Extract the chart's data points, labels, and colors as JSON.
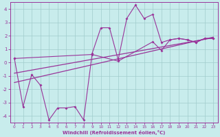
{
  "xlabel": "Windchill (Refroidissement éolien,°C)",
  "xlim": [
    -0.5,
    23.5
  ],
  "ylim": [
    -4.5,
    4.5
  ],
  "yticks": [
    -4,
    -3,
    -2,
    -1,
    0,
    1,
    2,
    3,
    4
  ],
  "xticks": [
    0,
    1,
    2,
    3,
    4,
    5,
    6,
    7,
    8,
    9,
    10,
    11,
    12,
    13,
    14,
    15,
    16,
    17,
    18,
    19,
    20,
    21,
    22,
    23
  ],
  "bg_color": "#c8ecec",
  "line_color": "#993399",
  "grid_color": "#a0cccc",
  "series1_x": [
    0,
    1,
    2,
    3,
    4,
    5,
    6,
    7,
    8,
    9,
    10,
    11,
    12,
    13,
    14,
    15,
    16,
    17,
    18,
    19,
    20,
    21,
    22,
    23
  ],
  "series1_y": [
    0.3,
    -3.3,
    -0.9,
    -1.7,
    -4.3,
    -3.4,
    -3.4,
    -3.3,
    -4.3,
    0.7,
    2.6,
    2.6,
    0.2,
    3.3,
    4.3,
    3.3,
    3.6,
    1.5,
    1.7,
    1.8,
    1.7,
    1.5,
    1.8,
    1.8
  ],
  "series2_x": [
    0,
    23
  ],
  "series2_y": [
    -1.5,
    1.9
  ],
  "series3_x": [
    0,
    23
  ],
  "series3_y": [
    -0.8,
    1.85
  ],
  "series4_x": [
    0,
    9,
    12,
    16,
    17,
    18,
    19,
    20,
    21,
    22,
    23
  ],
  "series4_y": [
    0.3,
    0.6,
    0.1,
    1.55,
    0.9,
    1.7,
    1.8,
    1.7,
    1.5,
    1.8,
    1.8
  ]
}
